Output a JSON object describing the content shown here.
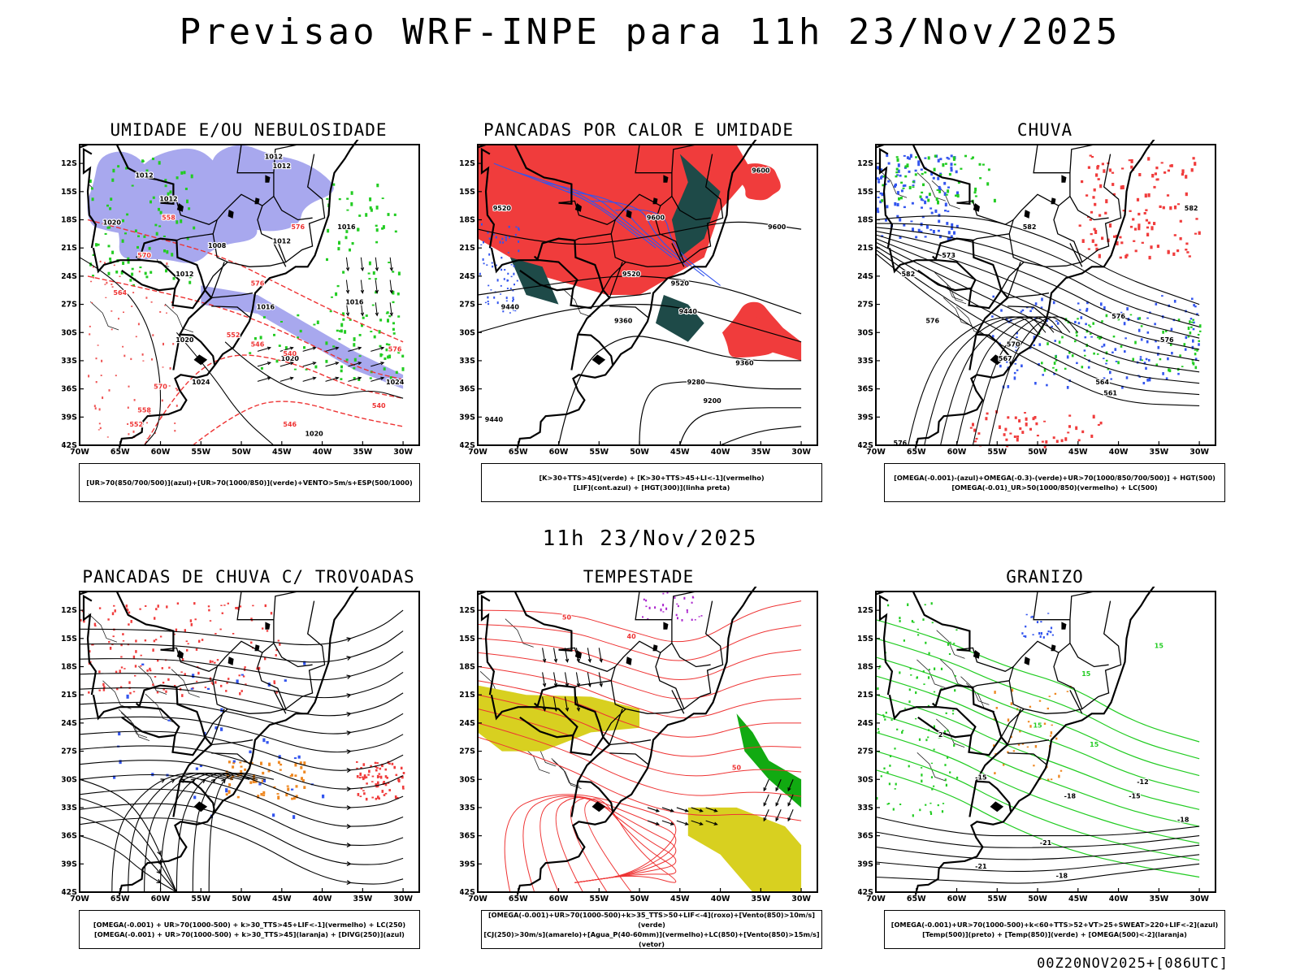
{
  "header": {
    "title": "Previsao WRF-INPE  para 11h 23/Nov/2025"
  },
  "middle_time": "11h 23/Nov/2025",
  "footer": {
    "run_label": "00Z20NOV2025+[086UTC]"
  },
  "axes": {
    "lat_ticks": [
      "12S",
      "15S",
      "18S",
      "21S",
      "24S",
      "27S",
      "30S",
      "33S",
      "36S",
      "39S",
      "42S"
    ],
    "lon_ticks": [
      "70W",
      "65W",
      "60W",
      "55W",
      "50W",
      "45W",
      "40W",
      "35W",
      "30W"
    ]
  },
  "colors": {
    "ur_mid_blue": "#a8a8ee",
    "ur_low_green": "#22cc22",
    "thickness_red": "#ee3333",
    "heat_red": "#f03c3c",
    "heat_green": "#1e4a48",
    "lif_blue": "#3355ee",
    "hail_orange": "#ee8822",
    "storm_yellow": "#d8d020",
    "storm_green": "#11aa11",
    "storm_purple": "#aa22cc"
  },
  "chart_data": [
    {
      "panel": "UMIDADE E/OU NEBULOSIDADE",
      "type": "map-contour",
      "caption": [
        "[UR>70(850/700/500)](azul)+[UR>70(1000/850)](verde)+VENTO>5m/s+ESP(500/1000)"
      ],
      "contour_labels": [
        "1012",
        "1012",
        "1012",
        "1012",
        "1020",
        "1016",
        "1008",
        "1012",
        "1012",
        "1016",
        "1016",
        "1020",
        "1020",
        "1024",
        "1024",
        "1020",
        "576",
        "570",
        "564",
        "558",
        "552",
        "546",
        "540",
        "576",
        "570",
        "576",
        "558",
        "552",
        "546",
        "540"
      ]
    },
    {
      "panel": "PANCADAS POR CALOR E UMIDADE",
      "type": "map-contour",
      "caption": [
        "[K>30+TTS>45](verde)  +  [K>30+TTS>45+LI<-1](vermelho)",
        "[LIF](cont.azul)  +  [HGT(300)](linha preta)"
      ],
      "contour_labels": [
        "9600",
        "9600",
        "9520",
        "9600",
        "9520",
        "9520",
        "9440",
        "9440",
        "9360",
        "9360",
        "9280",
        "9200",
        "9440"
      ]
    },
    {
      "panel": "CHUVA",
      "type": "map-contour",
      "caption": [
        "[OMEGA(-0.001)-(azul)+OMEGA(-0.3)-(verde)+UR>70(1000/850/700/500)]  +  HGT(500)",
        "[OMEGA(-0.01)_UR>50(1000/850)(vermelho)  +  LC(500)"
      ],
      "contour_labels": [
        "582",
        "582",
        "576",
        "576",
        "576",
        "570",
        "567",
        "564",
        "561",
        "576",
        "582",
        "573"
      ]
    },
    {
      "panel": "PANCADAS DE CHUVA C/ TROVOADAS",
      "type": "map-streamline",
      "caption": [
        "[OMEGA(-0.001)  +  UR>70(1000-500)  +  k>30_TTS>45+LIF<-1](vermelho)  +  LC(250)",
        "[OMEGA(-0.001)  +  UR>70(1000-500)  +  k>30_TTS>45](laranja)  +  [DIVG(250)](azul)"
      ],
      "contour_labels": []
    },
    {
      "panel": "TEMPESTADE",
      "type": "map-streamline",
      "caption": [
        "[OMEGA(-0.001)+UR>70(1000-500)+k>35_TTS>50+LIF<-4](roxo)+[Vento(850)>10m/s](verde)",
        "[CJ(250)>30m/s](amarelo)+[Agua_P(40-60mm)](vermelho)+LC(850)+[Vento(850)>15m/s](vetor)"
      ],
      "contour_labels": [
        "50",
        "40",
        "50"
      ]
    },
    {
      "panel": "GRANIZO",
      "type": "map-contour",
      "caption": [
        "[OMEGA(-0.001)+UR>70(1000-500)+k<60+TTS>52+VT>25+SWEAT>220+LIF<-2](azul)",
        "[Temp(500)](preto)  +  [Temp(850)](verde)  +  [OMEGA(500)<-2](laranja)"
      ],
      "contour_labels": [
        "15",
        "15",
        "-15",
        "-12",
        "-18",
        "-15",
        "-18",
        "-21",
        "-21",
        "-18",
        "2",
        "15",
        "15"
      ]
    }
  ]
}
